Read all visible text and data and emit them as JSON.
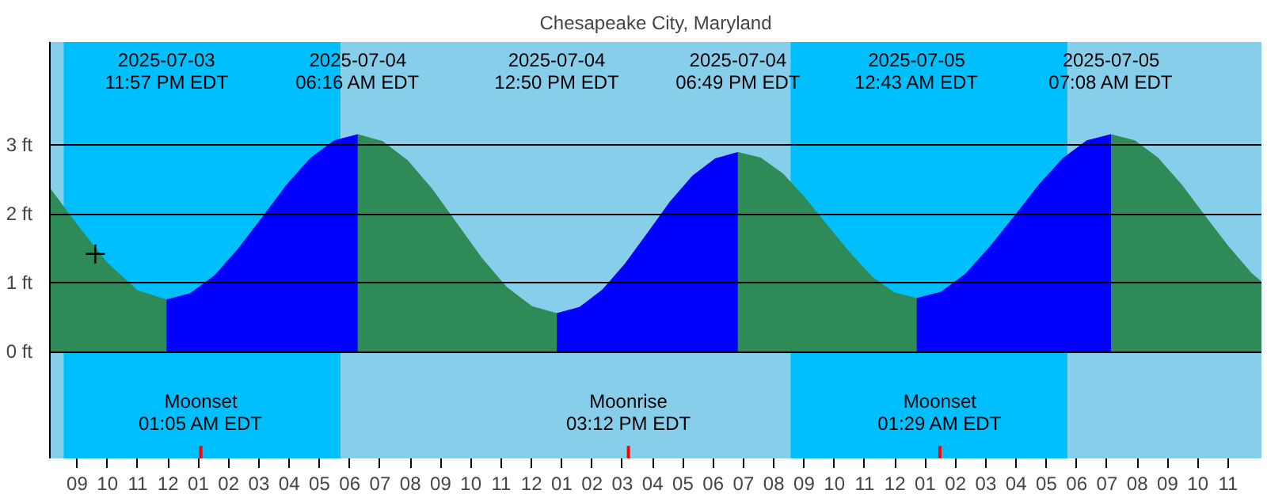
{
  "chart_data": {
    "type": "area",
    "title": "Chesapeake City, Maryland",
    "series": [
      {
        "color": "#2e8b57",
        "x": [
          "2025-07-03T20:06",
          "2025-07-03T21:00",
          "2025-07-03T22:00",
          "2025-07-03T23:00",
          "2025-07-03T23:57"
        ],
        "values": [
          2.38,
          1.85,
          1.29,
          0.89,
          0.76
        ]
      },
      {
        "color": "#0000ff",
        "x": [
          "2025-07-03T23:57",
          "2025-07-04T00:44",
          "2025-07-04T01:32",
          "2025-07-04T02:19",
          "2025-07-04T03:07",
          "2025-07-04T03:54",
          "2025-07-04T04:41",
          "2025-07-04T05:29",
          "2025-07-04T06:16"
        ],
        "values": [
          0.76,
          0.85,
          1.11,
          1.5,
          1.96,
          2.42,
          2.81,
          3.07,
          3.16
        ]
      },
      {
        "color": "#2e8b57",
        "x": [
          "2025-07-04T06:16",
          "2025-07-04T07:05",
          "2025-07-04T07:55",
          "2025-07-04T08:44",
          "2025-07-04T09:33",
          "2025-07-04T10:22",
          "2025-07-04T11:11",
          "2025-07-04T12:01",
          "2025-07-04T12:50"
        ],
        "values": [
          3.16,
          3.06,
          2.78,
          2.36,
          1.86,
          1.36,
          0.94,
          0.66,
          0.56
        ]
      },
      {
        "color": "#0000ff",
        "x": [
          "2025-07-04T12:50",
          "2025-07-04T13:35",
          "2025-07-04T14:20",
          "2025-07-04T15:05",
          "2025-07-04T15:50",
          "2025-07-04T16:34",
          "2025-07-04T17:19",
          "2025-07-04T18:04",
          "2025-07-04T18:49"
        ],
        "values": [
          0.56,
          0.65,
          0.9,
          1.28,
          1.73,
          2.18,
          2.56,
          2.81,
          2.9
        ]
      },
      {
        "color": "#2e8b57",
        "x": [
          "2025-07-04T18:49",
          "2025-07-04T19:34",
          "2025-07-04T20:18",
          "2025-07-04T21:02",
          "2025-07-04T21:46",
          "2025-07-04T22:31",
          "2025-07-04T23:15",
          "2025-07-04T23:59",
          "2025-07-05T00:43"
        ],
        "values": [
          2.9,
          2.82,
          2.59,
          2.24,
          1.84,
          1.44,
          1.09,
          0.86,
          0.78
        ]
      },
      {
        "color": "#0000ff",
        "x": [
          "2025-07-05T00:43",
          "2025-07-05T01:31",
          "2025-07-05T02:19",
          "2025-07-05T03:07",
          "2025-07-05T03:56",
          "2025-07-05T04:44",
          "2025-07-05T05:32",
          "2025-07-05T06:20",
          "2025-07-05T07:08"
        ],
        "values": [
          0.78,
          0.87,
          1.13,
          1.52,
          1.97,
          2.42,
          2.81,
          3.07,
          3.16
        ]
      },
      {
        "color": "#2e8b57",
        "x": [
          "2025-07-05T07:08",
          "2025-07-05T07:55",
          "2025-07-05T08:41",
          "2025-07-05T09:28",
          "2025-07-05T10:14",
          "2025-07-05T11:01",
          "2025-07-05T11:47",
          "2025-07-05T12:06"
        ],
        "values": [
          3.16,
          3.07,
          2.82,
          2.43,
          1.98,
          1.53,
          1.14,
          1.02
        ]
      },
      {
        "type": "scatter",
        "marker": "cross",
        "color": "#000000",
        "x": [
          "2025-07-03T21:36"
        ],
        "values": [
          1.42
        ]
      }
    ],
    "xlim": [
      "2025-07-03T20:06",
      "2025-07-05T12:06"
    ],
    "ylim": [
      -1.55,
      4.5
    ],
    "xticks": [
      {
        "value": "2025-07-03T21:00",
        "label": "09"
      },
      {
        "value": "2025-07-03T22:00",
        "label": "10"
      },
      {
        "value": "2025-07-03T23:00",
        "label": "11"
      },
      {
        "value": "2025-07-04T00:00",
        "label": "12"
      },
      {
        "value": "2025-07-04T01:00",
        "label": "01"
      },
      {
        "value": "2025-07-04T02:00",
        "label": "02"
      },
      {
        "value": "2025-07-04T03:00",
        "label": "03"
      },
      {
        "value": "2025-07-04T04:00",
        "label": "04"
      },
      {
        "value": "2025-07-04T05:00",
        "label": "05"
      },
      {
        "value": "2025-07-04T06:00",
        "label": "06"
      },
      {
        "value": "2025-07-04T07:00",
        "label": "07"
      },
      {
        "value": "2025-07-04T08:00",
        "label": "08"
      },
      {
        "value": "2025-07-04T09:00",
        "label": "09"
      },
      {
        "value": "2025-07-04T10:00",
        "label": "10"
      },
      {
        "value": "2025-07-04T11:00",
        "label": "11"
      },
      {
        "value": "2025-07-04T12:00",
        "label": "12"
      },
      {
        "value": "2025-07-04T13:00",
        "label": "01"
      },
      {
        "value": "2025-07-04T14:00",
        "label": "02"
      },
      {
        "value": "2025-07-04T15:00",
        "label": "03"
      },
      {
        "value": "2025-07-04T16:00",
        "label": "04"
      },
      {
        "value": "2025-07-04T17:00",
        "label": "05"
      },
      {
        "value": "2025-07-04T18:00",
        "label": "06"
      },
      {
        "value": "2025-07-04T19:00",
        "label": "07"
      },
      {
        "value": "2025-07-04T20:00",
        "label": "08"
      },
      {
        "value": "2025-07-04T21:00",
        "label": "09"
      },
      {
        "value": "2025-07-04T22:00",
        "label": "10"
      },
      {
        "value": "2025-07-04T23:00",
        "label": "11"
      },
      {
        "value": "2025-07-05T00:00",
        "label": "12"
      },
      {
        "value": "2025-07-05T01:00",
        "label": "01"
      },
      {
        "value": "2025-07-05T02:00",
        "label": "02"
      },
      {
        "value": "2025-07-05T03:00",
        "label": "03"
      },
      {
        "value": "2025-07-05T04:00",
        "label": "04"
      },
      {
        "value": "2025-07-05T05:00",
        "label": "05"
      },
      {
        "value": "2025-07-05T06:00",
        "label": "06"
      },
      {
        "value": "2025-07-05T07:00",
        "label": "07"
      },
      {
        "value": "2025-07-05T08:00",
        "label": "08"
      },
      {
        "value": "2025-07-05T09:00",
        "label": "09"
      },
      {
        "value": "2025-07-05T10:00",
        "label": "10"
      },
      {
        "value": "2025-07-05T11:00",
        "label": "11"
      }
    ],
    "yticks": [
      {
        "value": 0,
        "label": "0 ft"
      },
      {
        "value": 1,
        "label": "1 ft"
      },
      {
        "value": 2,
        "label": "2 ft"
      },
      {
        "value": 3,
        "label": "3 ft"
      }
    ],
    "grid": "y",
    "bands": [
      {
        "axis": "x",
        "from": "2025-07-03T20:06",
        "to": "2025-07-03T20:33",
        "color": "#87ceeb"
      },
      {
        "axis": "x",
        "from": "2025-07-03T20:33",
        "to": "2025-07-04T05:42",
        "color": "#00bfff"
      },
      {
        "axis": "x",
        "from": "2025-07-04T05:42",
        "to": "2025-07-04T20:33",
        "color": "#87ceeb"
      },
      {
        "axis": "x",
        "from": "2025-07-04T20:33",
        "to": "2025-07-05T05:42",
        "color": "#00bfff"
      },
      {
        "axis": "x",
        "from": "2025-07-05T05:42",
        "to": "2025-07-05T12:06",
        "color": "#87ceeb"
      }
    ],
    "ref_lines": [
      {
        "axis": "x",
        "value": "2025-07-04T01:05",
        "label": "Moonset\n01:05 AM EDT",
        "color": "#ff0000"
      },
      {
        "axis": "x",
        "value": "2025-07-04T15:12",
        "label": "Moonrise\n03:12 PM EDT",
        "color": "#ff0000"
      },
      {
        "axis": "x",
        "value": "2025-07-05T01:29",
        "label": "Moonset\n01:29 AM EDT",
        "color": "#ff0000"
      }
    ],
    "annotations": [
      "2025-07-03\n11:57 PM EDT",
      "2025-07-04\n06:16 AM EDT",
      "2025-07-04\n12:50 PM EDT",
      "2025-07-04\n06:49 PM EDT",
      "2025-07-05\n12:43 AM EDT",
      "2025-07-05\n07:08 AM EDT"
    ]
  }
}
